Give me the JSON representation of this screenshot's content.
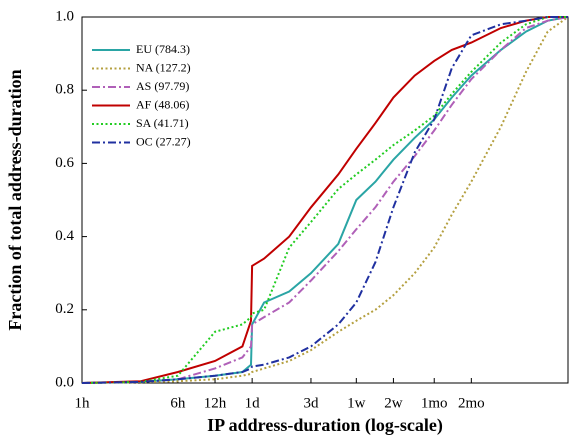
{
  "chart_data": {
    "type": "line",
    "x_label": "IP address-duration (log-scale)",
    "y_label": "Fraction of total address-duration",
    "xscale": "log",
    "xlim": [
      1,
      8760
    ],
    "ylim": [
      0,
      1
    ],
    "xticks": [
      {
        "value": 1,
        "label": "1h"
      },
      {
        "value": 6,
        "label": "6h"
      },
      {
        "value": 12,
        "label": "12h"
      },
      {
        "value": 24,
        "label": "1d"
      },
      {
        "value": 72,
        "label": "3d"
      },
      {
        "value": 168,
        "label": "1w"
      },
      {
        "value": 336,
        "label": "2w"
      },
      {
        "value": 720,
        "label": "1mo"
      },
      {
        "value": 1440,
        "label": "2mo"
      }
    ],
    "yticks": [
      {
        "value": 0,
        "label": "0.0"
      },
      0.2,
      0.4,
      0.6,
      0.8,
      {
        "value": 1,
        "label": "1.0"
      }
    ],
    "legend": "upper left",
    "x": [
      1,
      3,
      6,
      12,
      20,
      23.5,
      24,
      30,
      48,
      72,
      120,
      168,
      240,
      336,
      500,
      720,
      1000,
      1440,
      2500,
      4000,
      6000,
      8760
    ],
    "series": [
      {
        "name": "EU (784.3)",
        "color": "#2aa5a5",
        "style": "solid",
        "values": [
          0,
          0.003,
          0.01,
          0.02,
          0.03,
          0.05,
          0.16,
          0.22,
          0.25,
          0.3,
          0.38,
          0.5,
          0.55,
          0.61,
          0.67,
          0.72,
          0.78,
          0.84,
          0.91,
          0.96,
          0.99,
          1.0
        ]
      },
      {
        "name": "NA (127.2)",
        "color": "#b5a040",
        "style": "dotted",
        "values": [
          0,
          0.002,
          0.005,
          0.01,
          0.02,
          0.025,
          0.03,
          0.04,
          0.06,
          0.09,
          0.14,
          0.17,
          0.2,
          0.24,
          0.3,
          0.37,
          0.46,
          0.55,
          0.7,
          0.85,
          0.96,
          1.0
        ]
      },
      {
        "name": "AS (97.79)",
        "color": "#b060b8",
        "style": "dashdot",
        "values": [
          0,
          0.003,
          0.01,
          0.04,
          0.07,
          0.1,
          0.16,
          0.18,
          0.22,
          0.28,
          0.36,
          0.42,
          0.48,
          0.55,
          0.62,
          0.69,
          0.76,
          0.83,
          0.91,
          0.97,
          0.99,
          1.0
        ]
      },
      {
        "name": "AF (48.06)",
        "color": "#c00000",
        "style": "solid",
        "values": [
          0,
          0.005,
          0.03,
          0.06,
          0.1,
          0.17,
          0.32,
          0.34,
          0.4,
          0.48,
          0.57,
          0.64,
          0.71,
          0.78,
          0.84,
          0.88,
          0.91,
          0.93,
          0.97,
          0.99,
          1.0,
          1.0
        ]
      },
      {
        "name": "SA (41.71)",
        "color": "#22cc22",
        "style": "dotted",
        "values": [
          0,
          0.003,
          0.02,
          0.14,
          0.16,
          0.18,
          0.19,
          0.2,
          0.37,
          0.44,
          0.53,
          0.57,
          0.61,
          0.65,
          0.69,
          0.73,
          0.79,
          0.85,
          0.93,
          0.98,
          1.0,
          1.0
        ]
      },
      {
        "name": "OC (27.27)",
        "color": "#2030a0",
        "style": "dashdot",
        "values": [
          0,
          0.003,
          0.01,
          0.02,
          0.03,
          0.04,
          0.045,
          0.05,
          0.07,
          0.1,
          0.16,
          0.22,
          0.33,
          0.48,
          0.63,
          0.72,
          0.86,
          0.95,
          0.98,
          0.99,
          1.0,
          1.0
        ]
      }
    ]
  }
}
